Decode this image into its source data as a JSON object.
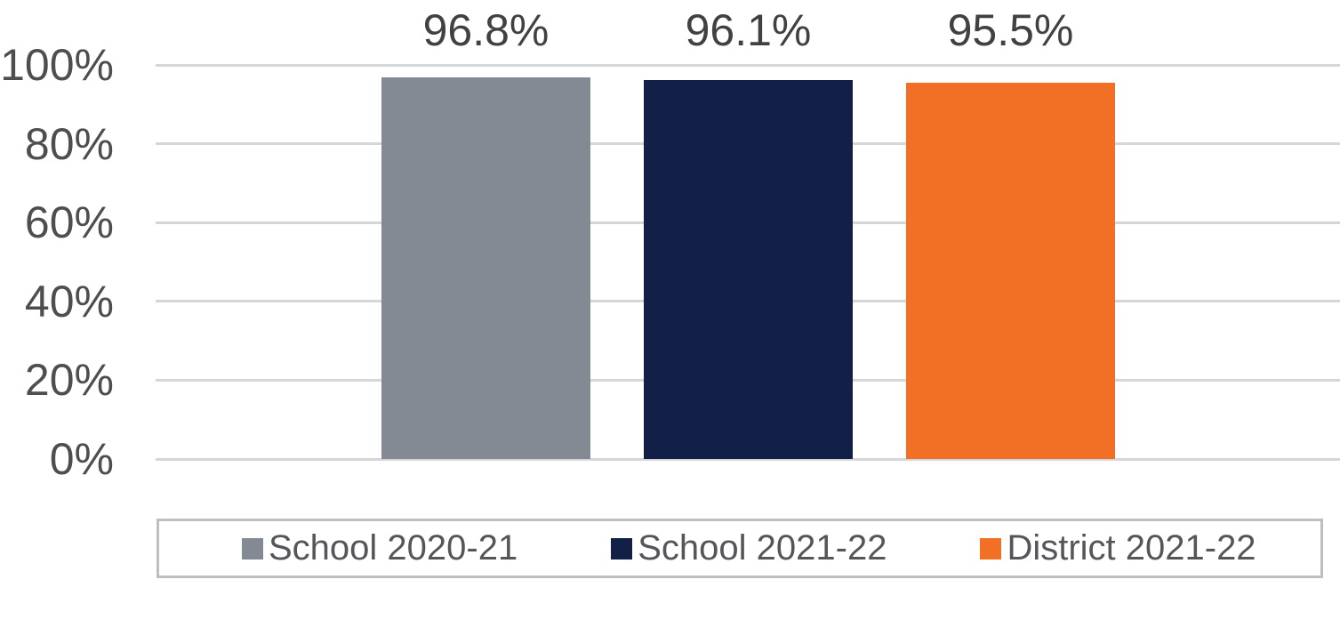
{
  "chart_data": {
    "type": "bar",
    "title": "",
    "series": [
      {
        "name": "School 2020-21",
        "value": 96.8,
        "data_label": "96.8%",
        "color": "#848A94"
      },
      {
        "name": "School 2021-22",
        "value": 96.1,
        "data_label": "96.1%",
        "color": "#122047"
      },
      {
        "name": "District 2021-22",
        "value": 95.5,
        "data_label": "95.5%",
        "color": "#F26F26"
      }
    ],
    "y_axis": {
      "min": 0,
      "max": 100,
      "tick_step": 20,
      "ticks": [
        {
          "value": 0,
          "label": "0%"
        },
        {
          "value": 20,
          "label": "20%"
        },
        {
          "value": 40,
          "label": "40%"
        },
        {
          "value": 60,
          "label": "60%"
        },
        {
          "value": 80,
          "label": "80%"
        },
        {
          "value": 100,
          "label": "100%"
        }
      ]
    },
    "grid": true,
    "legend_position": "bottom"
  },
  "colors": {
    "background": "#FFFFFF",
    "gridline": "#D5D6D8",
    "axis_text": "#4D4E50",
    "data_label_text": "#414144",
    "legend_text": "#55565A",
    "legend_border": "#BDBEC0"
  }
}
